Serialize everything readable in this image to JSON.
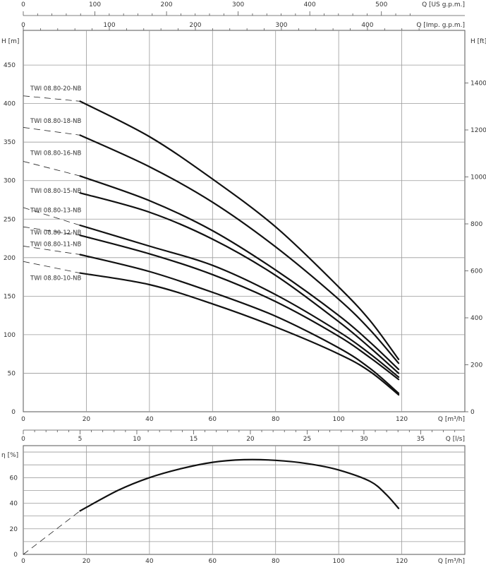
{
  "chart_data": [
    {
      "type": "line",
      "title": "",
      "xlabel": "Q [m³/h]",
      "ylabel": "H [m]",
      "y2label": "H [ft]",
      "top_axis_1_label": "Q [US g.p.m.]",
      "top_axis_1_ticks": [
        "0",
        "100",
        "200",
        "300",
        "400",
        "500"
      ],
      "top_axis_2_label": "Q [Imp. g.p.m.]",
      "top_axis_2_ticks": [
        "0",
        "100",
        "200",
        "300",
        "400"
      ],
      "x_ticks": [
        "0",
        "20",
        "40",
        "60",
        "80",
        "100",
        "120"
      ],
      "y_ticks": [
        "0",
        "50",
        "100",
        "150",
        "200",
        "250",
        "300",
        "350",
        "400",
        "450"
      ],
      "y2_ticks": [
        "0",
        "200",
        "400",
        "600",
        "800",
        "1000",
        "1200",
        "1400"
      ],
      "xlim": [
        0,
        140
      ],
      "ylim": [
        0,
        495
      ],
      "grid": true,
      "series": [
        {
          "name": "TWI 08.80-20-NB",
          "label_at": [
            2,
            417
          ],
          "dashed": [
            [
              0,
              410
            ],
            [
              18,
              403
            ]
          ],
          "x": [
            18,
            40,
            60,
            80,
            100,
            110,
            119
          ],
          "y": [
            403,
            357,
            302,
            240,
            162,
            118,
            68
          ]
        },
        {
          "name": "TWI 08.80-18-NB",
          "label_at": [
            2,
            375
          ],
          "dashed": [
            [
              0,
              369
            ],
            [
              18,
              359
            ]
          ],
          "x": [
            18,
            40,
            60,
            80,
            100,
            110,
            119
          ],
          "y": [
            359,
            318,
            272,
            214,
            146,
            106,
            63
          ]
        },
        {
          "name": "TWI 08.80-16-NB",
          "label_at": [
            2,
            333
          ],
          "dashed": [
            [
              0,
              325
            ],
            [
              18,
              306
            ]
          ],
          "x": [
            18,
            40,
            60,
            80,
            100,
            110,
            119
          ],
          "y": [
            306,
            274,
            235,
            184,
            125,
            90,
            55
          ]
        },
        {
          "name": "TWI 08.80-15-NB",
          "label_at": [
            2,
            284
          ],
          "dashed": [],
          "x": [
            18,
            40,
            60,
            80,
            100,
            110,
            119
          ],
          "y": [
            284,
            259,
            224,
            177,
            117,
            83,
            50
          ]
        },
        {
          "name": "TWI 08.80-13-NB",
          "label_at": [
            2,
            259
          ],
          "dashed": [
            [
              0,
              265
            ],
            [
              18,
              242
            ]
          ],
          "x": [
            18,
            40,
            60,
            80,
            100,
            110,
            119
          ],
          "y": [
            242,
            215,
            190,
            152,
            104,
            75,
            45
          ]
        },
        {
          "name": "TWI 08.80-12-NB",
          "label_at": [
            2,
            230
          ],
          "dashed": [
            [
              0,
              240
            ],
            [
              18,
              229
            ]
          ],
          "x": [
            18,
            40,
            60,
            80,
            100,
            110,
            119
          ],
          "y": [
            229,
            205,
            178,
            143,
            98,
            70,
            42
          ]
        },
        {
          "name": "TWI 08.80-11-NB",
          "label_at": [
            2,
            215
          ],
          "dashed": [
            [
              0,
              215
            ],
            [
              18,
              204
            ]
          ],
          "x": [
            18,
            40,
            60,
            80,
            100,
            110,
            119
          ],
          "y": [
            204,
            182,
            155,
            124,
            83,
            56,
            24
          ]
        },
        {
          "name": "TWI 08.80-10-NB",
          "label_at": [
            2,
            171
          ],
          "dashed": [
            [
              0,
              195
            ],
            [
              18,
              180
            ]
          ],
          "x": [
            18,
            40,
            60,
            80,
            100,
            110,
            119
          ],
          "y": [
            180,
            165,
            140,
            110,
            75,
            52,
            22
          ]
        }
      ]
    },
    {
      "type": "line",
      "title": "",
      "xlabel": "Q [m³/h]",
      "ylabel": "η [%]",
      "top_axis_label": "Q [l/s]",
      "top_axis_ticks": [
        "0",
        "5",
        "10",
        "15",
        "20",
        "25",
        "30",
        "35"
      ],
      "x_ticks": [
        "0",
        "20",
        "40",
        "60",
        "80",
        "100",
        "120"
      ],
      "y_ticks": [
        "0",
        "20",
        "40",
        "60"
      ],
      "xlim": [
        0,
        140
      ],
      "ylim": [
        0,
        85
      ],
      "grid": true,
      "series": [
        {
          "dashed": [
            [
              0,
              0
            ],
            [
              18,
              34
            ]
          ],
          "x": [
            18,
            30,
            40,
            50,
            60,
            70,
            80,
            90,
            100,
            110,
            115,
            119
          ],
          "y": [
            34,
            50,
            60,
            67,
            72,
            74,
            73.5,
            71,
            66,
            57,
            47,
            36
          ]
        }
      ]
    }
  ]
}
